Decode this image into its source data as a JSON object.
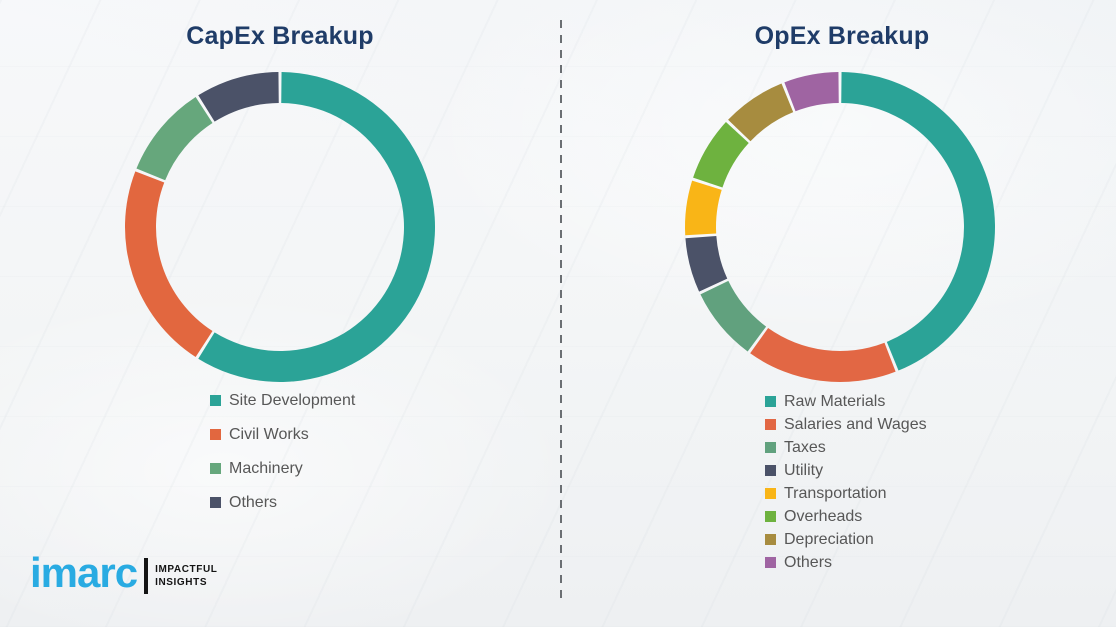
{
  "chart_data": [
    {
      "type": "pie",
      "subtype": "donut",
      "title": "CapEx Breakup",
      "labels": [
        "Site Development",
        "Civil Works",
        "Machinery",
        "Others"
      ],
      "values": [
        59,
        22,
        10,
        9
      ],
      "values_note": "percent, estimated from arc angles",
      "colors": [
        "#2ba397",
        "#e2673f",
        "#66a77c",
        "#4b5268"
      ],
      "start_angle_deg": 0,
      "direction": "clockwise",
      "legend_position": "bottom"
    },
    {
      "type": "pie",
      "subtype": "donut",
      "title": "OpEx Breakup",
      "labels": [
        "Raw Materials",
        "Salaries and Wages",
        "Taxes",
        "Utility",
        "Transportation",
        "Overheads",
        "Depreciation",
        "Others"
      ],
      "values": [
        44,
        16,
        8,
        6,
        6,
        7,
        7,
        6
      ],
      "values_note": "percent, estimated from arc angles",
      "colors": [
        "#2ba397",
        "#e26744",
        "#61a17e",
        "#4b5268",
        "#f9b517",
        "#6eb23f",
        "#a78c3f",
        "#9f64a2"
      ],
      "start_angle_deg": 0,
      "direction": "clockwise",
      "legend_position": "bottom"
    }
  ],
  "logo": {
    "brand": "imarc",
    "tagline_line1": "IMPACTFUL",
    "tagline_line2": "INSIGHTS",
    "brand_color": "#29abe2"
  },
  "style": {
    "title_color": "#1f3c68",
    "legend_text_color": "#575757",
    "divider_color": "#6b6f73",
    "background_color": "#f3f5f6"
  }
}
